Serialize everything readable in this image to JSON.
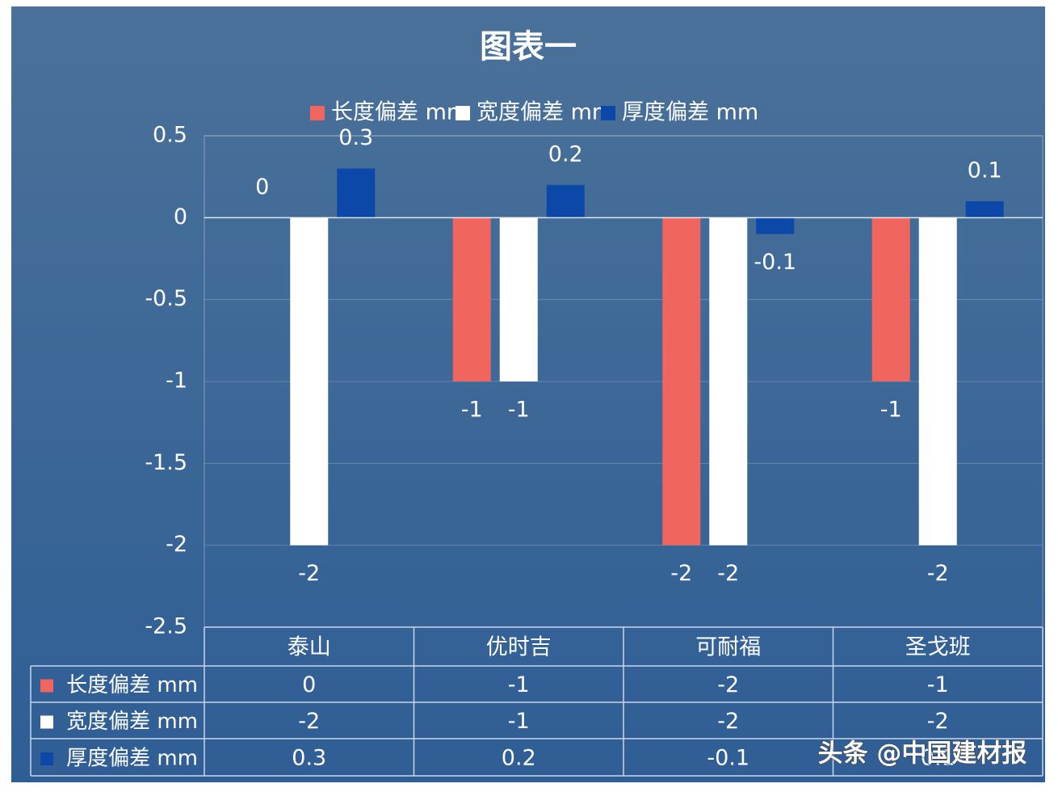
{
  "chart_data": {
    "type": "bar",
    "title": "图表一",
    "categories": [
      "泰山",
      "优时吉",
      "可耐福",
      "圣戈班"
    ],
    "series": [
      {
        "name": "长度偏差 mm",
        "color": "#f0655e",
        "values": [
          0,
          -1,
          -2,
          -1
        ]
      },
      {
        "name": "宽度偏差 mm",
        "color": "#ffffff",
        "values": [
          -2,
          -1,
          -2,
          -2
        ]
      },
      {
        "name": "厚度偏差 mm",
        "color": "#0b48a8",
        "values": [
          0.3,
          0.2,
          -0.1,
          0.1
        ]
      }
    ],
    "ylim": [
      -2.5,
      0.5
    ],
    "yticks": [
      -2.5,
      -2,
      -1.5,
      -1,
      -0.5,
      0,
      0.5
    ],
    "grid": true,
    "legend": "top",
    "data_table": true,
    "watermark": "头条 @中国建材报"
  }
}
